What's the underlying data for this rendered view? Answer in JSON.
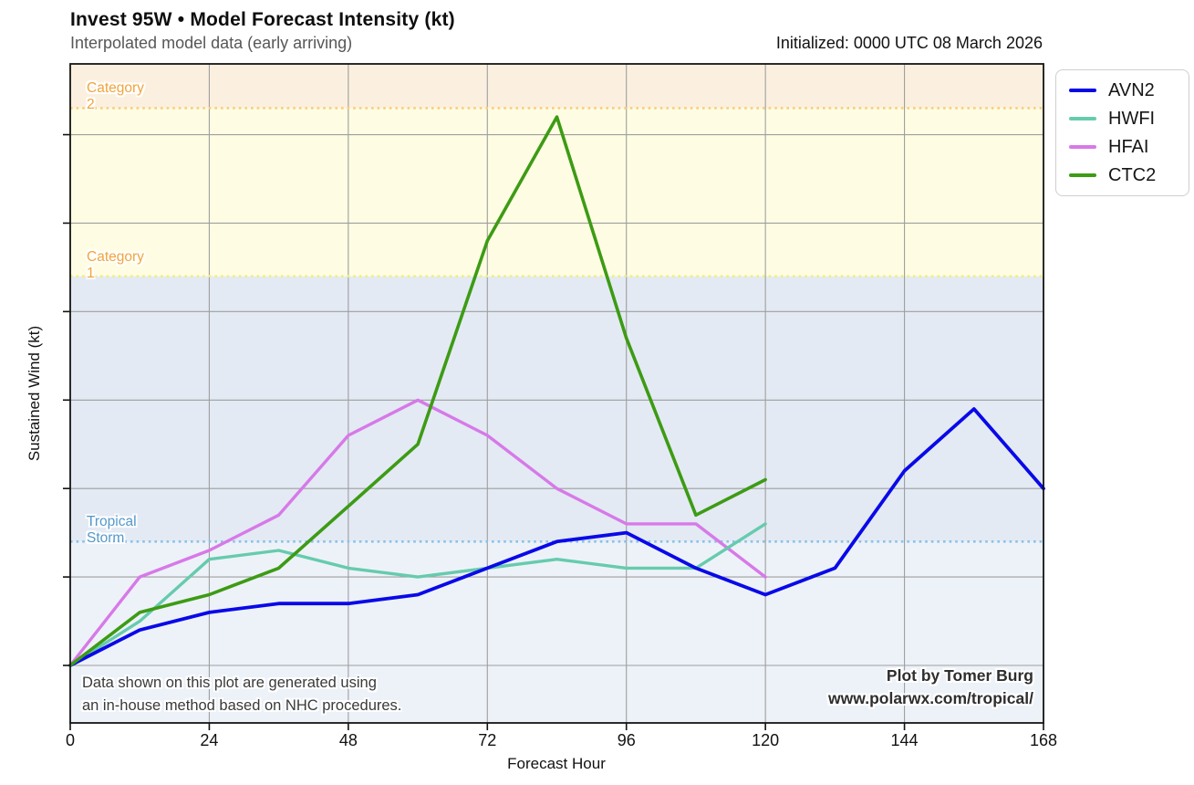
{
  "header": {
    "title": "Invest 95W • Model Forecast Intensity (kt)",
    "subtitle": "Interpolated model data (early arriving)",
    "initialized": "Initialized: 0000 UTC 08 March 2026"
  },
  "chart_data": {
    "type": "line",
    "title": "Invest 95W • Model Forecast Intensity (kt)",
    "subtitle": "Interpolated model data (early arriving)",
    "xlabel": "Forecast Hour",
    "ylabel": "Sustained Wind (kt)",
    "xlim": [
      0,
      168
    ],
    "ylim": [
      13.5,
      88
    ],
    "x_ticks": [
      0,
      24,
      48,
      72,
      96,
      120,
      144,
      168
    ],
    "y_ticks": [
      20,
      30,
      40,
      50,
      60,
      70,
      80
    ],
    "grid": true,
    "grid_color": "#9e9e9e",
    "legend_position": "outside-top-right",
    "draw_order": [
      "HFAI",
      "HWFI",
      "AVN2",
      "CTC2"
    ],
    "series": [
      {
        "name": "AVN2",
        "color": "#0909e8",
        "width": 3.8,
        "x": [
          0,
          12,
          24,
          36,
          48,
          60,
          72,
          84,
          96,
          108,
          120,
          132,
          144,
          156,
          168
        ],
        "values": [
          20,
          24,
          26,
          27,
          27,
          28,
          31,
          34,
          35,
          31,
          28,
          31,
          42,
          49,
          40
        ]
      },
      {
        "name": "HWFI",
        "color": "#66cbad",
        "width": 3.4,
        "x": [
          0,
          12,
          24,
          36,
          48,
          60,
          72,
          84,
          96,
          108,
          120
        ],
        "values": [
          20,
          25,
          32,
          33,
          31,
          30,
          31,
          32,
          31,
          31,
          36
        ]
      },
      {
        "name": "HFAI",
        "color": "#d779e8",
        "width": 3.4,
        "x": [
          0,
          12,
          24,
          36,
          48,
          60,
          72,
          84,
          96,
          108,
          120
        ],
        "values": [
          20,
          30,
          33,
          37,
          46,
          50,
          46,
          40,
          36,
          36,
          30
        ]
      },
      {
        "name": "CTC2",
        "color": "#3d9b14",
        "width": 3.6,
        "x": [
          0,
          12,
          24,
          36,
          48,
          60,
          72,
          84,
          96,
          108,
          120
        ],
        "values": [
          20,
          26,
          28,
          31,
          38,
          45,
          68,
          82,
          57,
          37,
          41
        ]
      }
    ],
    "bands": [
      {
        "label": "",
        "from": 13.5,
        "to": 34,
        "color": "#edf2f9",
        "line_color": "",
        "label_color": ""
      },
      {
        "label": "Tropical Storm",
        "from": 34,
        "to": 64,
        "color": "#e3eaf4",
        "line_color": "#8cc1e8",
        "label_color": "#5599cc"
      },
      {
        "label": "Category 1",
        "from": 64,
        "to": 83,
        "color": "#fefde3",
        "line_color": "#f2ee7e",
        "label_color": "#f2a43c"
      },
      {
        "label": "Category 2",
        "from": 83,
        "to": 88,
        "color": "#fbf0df",
        "line_color": "#f9cd7c",
        "label_color": "#f2a43c"
      }
    ],
    "annotation": "Data shown on this plot are generated using\nan in-house method based on NHC procedures.",
    "credit_line1": "Plot by Tomer Burg",
    "credit_line2": "www.polarwx.com/tropical/"
  }
}
